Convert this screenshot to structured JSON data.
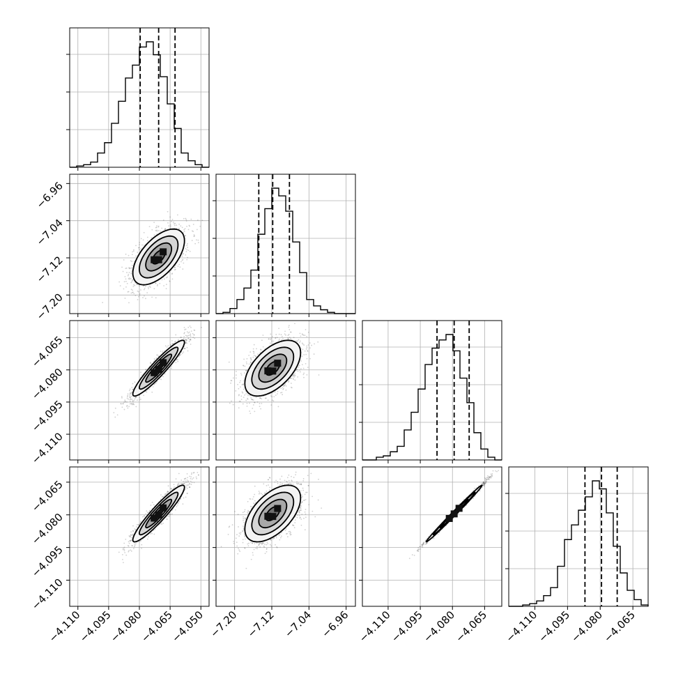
{
  "chart_data": {
    "type": "corner",
    "parameters": [
      {
        "range": [
          -4.114,
          -4.046
        ],
        "ticks": [
          -4.11,
          -4.095,
          -4.08,
          -4.065,
          -4.05
        ],
        "tick_labels": [
          "−4.110",
          "−4.095",
          "−4.080",
          "−4.065",
          "−4.050"
        ]
      },
      {
        "range": [
          -7.24,
          -6.94
        ],
        "ticks": [
          -7.2,
          -7.12,
          -7.04,
          -6.96
        ],
        "tick_labels": [
          "−7.20",
          "−7.12",
          "−7.04",
          "−6.96"
        ]
      },
      {
        "range": [
          -4.122,
          -4.057
        ],
        "ticks": [
          -4.11,
          -4.095,
          -4.08,
          -4.065
        ],
        "tick_labels": [
          "−4.110",
          "−4.095",
          "−4.080",
          "−4.065"
        ]
      },
      {
        "range": [
          -4.122,
          -4.058
        ],
        "ticks": [
          -4.11,
          -4.095,
          -4.08,
          -4.065
        ],
        "tick_labels": [
          "−4.110",
          "−4.095",
          "−4.080",
          "−4.065"
        ]
      }
    ],
    "histograms": [
      {
        "bin_edges": [
          -4.114,
          -4.1106,
          -4.1072,
          -4.1038,
          -4.1004,
          -4.097,
          -4.0936,
          -4.0902,
          -4.0868,
          -4.0834,
          -4.08,
          -4.0766,
          -4.0732,
          -4.0698,
          -4.0664,
          -4.063,
          -4.0596,
          -4.0562,
          -4.0528,
          -4.0494,
          -4.046
        ],
        "counts": [
          0,
          0.01,
          0.02,
          0.04,
          0.11,
          0.19,
          0.34,
          0.51,
          0.69,
          0.79,
          0.93,
          0.97,
          0.87,
          0.7,
          0.49,
          0.3,
          0.11,
          0.05,
          0.02,
          0
        ],
        "quantiles": [
          -4.0796,
          -4.0706,
          -4.0626
        ]
      },
      {
        "bin_edges": [
          -7.24,
          -7.225,
          -7.21,
          -7.195,
          -7.18,
          -7.165,
          -7.15,
          -7.135,
          -7.12,
          -7.105,
          -7.09,
          -7.075,
          -7.06,
          -7.045,
          -7.03,
          -7.015,
          -7.0,
          -6.985,
          -6.97,
          -6.955,
          -6.94
        ],
        "counts": [
          0,
          0.01,
          0.04,
          0.11,
          0.2,
          0.34,
          0.62,
          0.82,
          0.98,
          0.92,
          0.8,
          0.56,
          0.32,
          0.11,
          0.06,
          0.03,
          0.01,
          0,
          0,
          0
        ],
        "quantiles": [
          -7.148,
          -7.118,
          -7.082
        ]
      },
      {
        "bin_edges": [
          -4.122,
          -4.11875,
          -4.1155,
          -4.11225,
          -4.109,
          -4.10575,
          -4.1025,
          -4.09925,
          -4.096,
          -4.09275,
          -4.0895,
          -4.08625,
          -4.083,
          -4.07975,
          -4.0765,
          -4.07325,
          -4.07,
          -4.06675,
          -4.0635,
          -4.06025,
          -4.057
        ],
        "counts": [
          0,
          0,
          0.02,
          0.03,
          0.06,
          0.1,
          0.22,
          0.35,
          0.52,
          0.7,
          0.82,
          0.88,
          0.92,
          0.8,
          0.6,
          0.42,
          0.2,
          0.08,
          0.02,
          0
        ],
        "quantiles": [
          -4.0872,
          -4.0792,
          -4.0722
        ]
      },
      {
        "bin_edges": [
          -4.122,
          -4.1188,
          -4.1156,
          -4.1124,
          -4.1092,
          -4.106,
          -4.1028,
          -4.0996,
          -4.0964,
          -4.0932,
          -4.09,
          -4.0868,
          -4.0836,
          -4.0804,
          -4.0772,
          -4.074,
          -4.0708,
          -4.0676,
          -4.0644,
          -4.0612,
          -4.058
        ],
        "counts": [
          0,
          0,
          0.01,
          0.02,
          0.04,
          0.08,
          0.14,
          0.3,
          0.5,
          0.61,
          0.72,
          0.82,
          0.94,
          0.88,
          0.7,
          0.45,
          0.25,
          0.12,
          0.05,
          0.01
        ],
        "quantiles": [
          -4.087,
          -4.0794,
          -4.0722
        ]
      }
    ],
    "pairs": [
      {
        "row": 1,
        "col": 0,
        "center": [
          -4.0706,
          -7.118
        ],
        "sigma": [
          0.0063,
          0.03
        ],
        "rho": 0.58
      },
      {
        "row": 2,
        "col": 0,
        "center": [
          -4.0706,
          -4.0792
        ],
        "sigma": [
          0.0063,
          0.0065
        ],
        "rho": 0.93
      },
      {
        "row": 2,
        "col": 1,
        "center": [
          -7.118,
          -4.0792
        ],
        "sigma": [
          0.03,
          0.0065
        ],
        "rho": 0.55
      },
      {
        "row": 3,
        "col": 0,
        "center": [
          -4.0706,
          -4.0794
        ],
        "sigma": [
          0.0063,
          0.0065
        ],
        "rho": 0.93
      },
      {
        "row": 3,
        "col": 1,
        "center": [
          -7.118,
          -4.0794
        ],
        "sigma": [
          0.03,
          0.0065
        ],
        "rho": 0.55
      },
      {
        "row": 3,
        "col": 2,
        "center": [
          -4.0792,
          -4.0794
        ],
        "sigma": [
          0.0065,
          0.0065
        ],
        "rho": 0.995
      }
    ],
    "contour_levels_sigma": [
      0.5,
      1.0,
      1.5,
      2.0
    ],
    "quantile_line_style": "dashed",
    "grid": true,
    "colors": {
      "hist": "#000000",
      "contour_fill": "#9a9a9a",
      "grid": "#b0b0b0",
      "points": "#555555"
    }
  }
}
